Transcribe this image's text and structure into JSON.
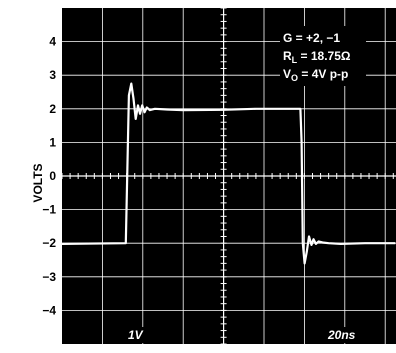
{
  "chart_data": {
    "type": "line",
    "title": "",
    "xlabel": "",
    "ylabel": "VOLTS",
    "ylim": [
      -5,
      5
    ],
    "y_ticks": [
      "4",
      "3",
      "2",
      "1",
      "0",
      "−1",
      "−2",
      "−3",
      "−4"
    ],
    "y_tick_values": [
      4,
      3,
      2,
      1,
      0,
      -1,
      -2,
      -3,
      -4
    ],
    "grid": true,
    "background": "#000000",
    "trace_color": "#ffffff",
    "annotation_lines": [
      {
        "main": "G = +2, −1",
        "sub": "",
        "rest": ""
      },
      {
        "main": "R",
        "sub": "L",
        "rest": " = 18.75Ω"
      },
      {
        "main": "V",
        "sub": "O",
        "rest": " = 4V p-p"
      }
    ],
    "scale_labels": {
      "vertical": "1V",
      "horizontal": "20ns"
    },
    "time_units": "ns",
    "series": [
      {
        "x": [
          0,
          31.6,
          33.1,
          34.3,
          35.4,
          36.5,
          37.6,
          38.6,
          39.7,
          40.9,
          42,
          43.5,
          46,
          52,
          60,
          80,
          96,
          118,
          118.6,
          119.2,
          120.1,
          121.2,
          122.3,
          123.5,
          124.5,
          125.7,
          127,
          129,
          132,
          138,
          150,
          165
        ],
        "y": [
          -2.02,
          -2.0,
          2.4,
          2.75,
          2.3,
          1.7,
          2.1,
          1.85,
          2.1,
          1.9,
          2.04,
          1.96,
          2.0,
          1.98,
          1.96,
          1.97,
          2.0,
          2.0,
          1.0,
          -2.0,
          -2.6,
          -2.25,
          -1.8,
          -2.05,
          -1.88,
          -2.02,
          -1.95,
          -1.98,
          -2.0,
          -2.02,
          -2.0,
          -2.0
        ]
      }
    ]
  }
}
